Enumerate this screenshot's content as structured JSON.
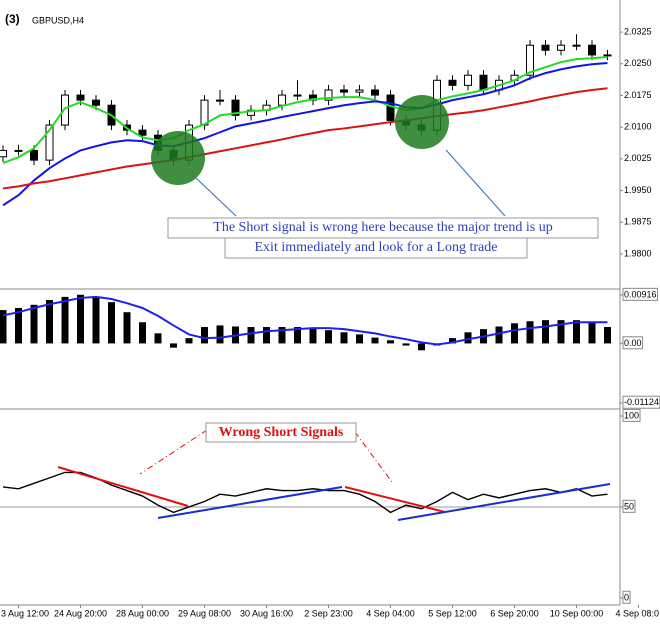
{
  "chart_data": [
    {
      "type": "candlestick",
      "panel_label": "(3)",
      "title": "GBPUSD,H4",
      "open": [
        2.003,
        2.0045,
        2.0045,
        2.0022,
        2.0105,
        2.0176,
        2.0164,
        2.0152,
        2.0105,
        2.0093,
        2.0081,
        2.0045,
        2.0022,
        2.0105,
        2.0164,
        2.0164,
        2.0128,
        2.014,
        2.0152,
        2.0176,
        2.0176,
        2.0164,
        2.0188,
        2.0183,
        2.0188,
        2.0176,
        2.0116,
        2.0105,
        2.0093,
        2.0211,
        2.0199,
        2.0223,
        2.0188,
        2.0211,
        2.0223,
        2.0294,
        2.0282,
        2.0294,
        2.0294,
        2.0271
      ],
      "high": [
        2.0057,
        2.0058,
        2.0057,
        2.0117,
        2.0188,
        2.0188,
        2.0176,
        2.0164,
        2.0117,
        2.0105,
        2.0093,
        2.0057,
        2.0117,
        2.0176,
        2.0188,
        2.0176,
        2.0152,
        2.0164,
        2.0188,
        2.0211,
        2.0188,
        2.02,
        2.02,
        2.02,
        2.02,
        2.0188,
        2.0128,
        2.0117,
        2.0223,
        2.0223,
        2.0235,
        2.0235,
        2.0223,
        2.0235,
        2.0306,
        2.0306,
        2.0306,
        2.032,
        2.0306,
        2.0283
      ],
      "low": [
        2.0018,
        2.0033,
        2.001,
        2.001,
        2.0093,
        2.0152,
        2.014,
        2.0093,
        2.0081,
        2.0069,
        2.0033,
        2.001,
        2.001,
        2.0093,
        2.0152,
        2.0116,
        2.0116,
        2.0128,
        2.014,
        2.0164,
        2.0152,
        2.0152,
        2.0171,
        2.0171,
        2.0164,
        2.0104,
        2.0093,
        2.0081,
        2.0081,
        2.0187,
        2.0187,
        2.0176,
        2.0176,
        2.0199,
        2.0211,
        2.027,
        2.027,
        2.0282,
        2.0259,
        2.0259
      ],
      "close": [
        2.0045,
        2.0045,
        2.0022,
        2.0105,
        2.0176,
        2.0164,
        2.0152,
        2.0105,
        2.0093,
        2.0081,
        2.0045,
        2.0022,
        2.0105,
        2.0164,
        2.0164,
        2.0128,
        2.014,
        2.0152,
        2.0176,
        2.0176,
        2.0164,
        2.0188,
        2.0183,
        2.0188,
        2.0176,
        2.0116,
        2.0105,
        2.0093,
        2.0211,
        2.0199,
        2.0223,
        2.0188,
        2.0211,
        2.0223,
        2.0294,
        2.0282,
        2.0294,
        2.0294,
        2.0271,
        2.0271
      ],
      "series": [
        {
          "color": "#22dd22",
          "values": [
            2.0015,
            2.0029,
            2.005,
            2.0093,
            2.0145,
            2.0159,
            2.0145,
            2.0128,
            2.0097,
            2.0076,
            2.0069,
            2.0074,
            2.0093,
            2.0107,
            2.0128,
            2.0133,
            2.0138,
            2.014,
            2.015,
            2.0159,
            2.0166,
            2.0169,
            2.0171,
            2.0171,
            2.0164,
            2.015,
            2.014,
            2.0145,
            2.0164,
            2.0173,
            2.018,
            2.0188,
            2.0199,
            2.0211,
            2.023,
            2.0242,
            2.0254,
            2.0261,
            2.0263,
            2.0266
          ]
        },
        {
          "color": "#1212ee",
          "values": [
            1.9915,
            1.9939,
            1.9974,
            2.0003,
            2.0026,
            2.0045,
            2.0055,
            2.0064,
            2.0069,
            2.0067,
            2.0057,
            2.0055,
            2.0064,
            2.0074,
            2.0088,
            2.0102,
            2.0109,
            2.0116,
            2.0124,
            2.0131,
            2.0138,
            2.0145,
            2.0152,
            2.0157,
            2.0161,
            2.0157,
            2.0147,
            2.0145,
            2.0154,
            2.0164,
            2.0171,
            2.0178,
            2.0188,
            2.0199,
            2.0216,
            2.0228,
            2.0237,
            2.0244,
            2.0249,
            2.0252
          ]
        },
        {
          "color": "#dd1111",
          "values": [
            1.9955,
            1.996,
            1.9967,
            1.9972,
            1.9979,
            1.9986,
            1.9993,
            2.0,
            2.0007,
            2.0012,
            2.0017,
            2.0022,
            2.0029,
            2.0036,
            2.0043,
            2.005,
            2.0057,
            2.0064,
            2.0071,
            2.0079,
            2.0086,
            2.0093,
            2.0097,
            2.0102,
            2.0107,
            2.0112,
            2.0116,
            2.0121,
            2.0126,
            2.0131,
            2.0135,
            2.014,
            2.0147,
            2.0154,
            2.0161,
            2.0169,
            2.0176,
            2.0183,
            2.0188,
            2.0192
          ]
        }
      ],
      "ylim": [
        1.9717,
        2.0401
      ],
      "yticks": [
        2.0325,
        {
          "value": 2.025,
          "label": "2.0250"
        },
        2.0175,
        {
          "value": 2.01,
          "label": "2.0100"
        },
        2.0025,
        {
          "value": 1.995,
          "label": "1.9950"
        },
        1.9875,
        {
          "value": 1.98,
          "label": "1.9800"
        }
      ],
      "annotations": [
        "The Short signal is wrong here because the major trend is up",
        "Exit immediately and look for a Long trade"
      ]
    },
    {
      "type": "histogram",
      "values": [
        0.0063,
        0.0067,
        0.0073,
        0.0082,
        0.0088,
        0.0092,
        0.0088,
        0.0078,
        0.0059,
        0.004,
        0.0019,
        -0.0008,
        0.001,
        0.0031,
        0.0034,
        0.0032,
        0.0031,
        0.0031,
        0.0031,
        0.0031,
        0.0029,
        0.0025,
        0.0021,
        0.0017,
        0.0011,
        0.0006,
        -0.0004,
        -0.0013,
        -0.0004,
        0.001,
        0.0021,
        0.0027,
        0.0032,
        0.0038,
        0.0042,
        0.0044,
        0.0044,
        0.0044,
        0.004,
        0.0031
      ],
      "color": "#000000",
      "series": [
        {
          "color": "#2020ee",
          "values": [
            0.0053,
            0.0059,
            0.0067,
            0.0074,
            0.008,
            0.0086,
            0.0088,
            0.0084,
            0.0076,
            0.0067,
            0.0052,
            0.0034,
            0.0017,
            0.001,
            0.0011,
            0.0015,
            0.0019,
            0.0023,
            0.0025,
            0.0027,
            0.0029,
            0.0029,
            0.0027,
            0.0023,
            0.0019,
            0.0013,
            0.0008,
            0.0002,
            -0.0002,
            0.0002,
            0.0008,
            0.0013,
            0.0019,
            0.0025,
            0.0029,
            0.0032,
            0.0036,
            0.004,
            0.004,
            0.004
          ]
        }
      ],
      "ylim": [
        -0.0124,
        0.0101
      ],
      "yticks": [
        0.00916,
        {
          "value": 0,
          "label": "0.00"
        },
        -0.01124
      ]
    },
    {
      "type": "line",
      "categories": [
        null,
        "3 Aug 12:00",
        null,
        null,
        null,
        "24 Aug 20:00",
        null,
        null,
        null,
        "28 Aug 00:00",
        null,
        null,
        null,
        "29 Aug 08:00",
        null,
        null,
        null,
        "30 Aug 16:00",
        null,
        null,
        null,
        "2 Sep 23:00",
        null,
        null,
        null,
        "4 Sep 04:00",
        null,
        null,
        null,
        "5 Sep 12:00",
        null,
        null,
        null,
        "6 Sep 20:00",
        null,
        null,
        null,
        "10 Sep 00:00",
        null,
        null,
        null,
        "4 Sep 08:0"
      ],
      "color": "#000000",
      "values": [
        61,
        60,
        63,
        66,
        69,
        69,
        66,
        62,
        59,
        56,
        51,
        47,
        50,
        53,
        57,
        56,
        58,
        60,
        59,
        59,
        60,
        59,
        59,
        57,
        53,
        47,
        51,
        49,
        53,
        58,
        54,
        57,
        55,
        57,
        59,
        60,
        58,
        60,
        56,
        57,
        null,
        null
      ],
      "ylim": [
        -3.9,
        103.3
      ],
      "yticks": [
        100,
        50,
        0
      ],
      "levels": [
        50
      ],
      "annotations": [
        "Wrong Short Signals"
      ]
    }
  ]
}
